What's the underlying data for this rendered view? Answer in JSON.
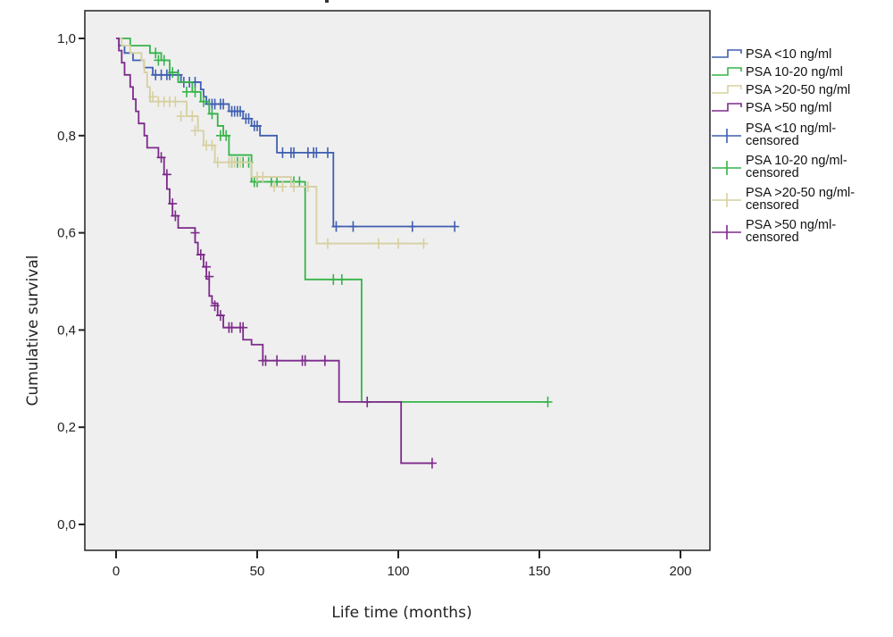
{
  "chart_data": {
    "type": "line",
    "subtype": "kaplan-meier",
    "title": "",
    "xlabel": "Life time (months)",
    "ylabel": "Cumulative survival",
    "xlim": [
      -12,
      210
    ],
    "ylim": [
      -0.05,
      1.05
    ],
    "xticks": [
      0,
      50,
      100,
      150,
      200
    ],
    "xtick_labels": [
      "0",
      "50",
      "100",
      "150",
      "200"
    ],
    "yticks": [
      0,
      0.2,
      0.4,
      0.6,
      0.8,
      1.0
    ],
    "ytick_labels": [
      "0,0",
      "0,2",
      "0,4",
      "0,6",
      "0,8",
      "1,0"
    ],
    "grid": false,
    "background": "#efefef",
    "legend_position": "right",
    "legend": [
      {
        "label": "PSA <10 ng/ml",
        "marker": "step",
        "color": "#3f5fb0"
      },
      {
        "label": "PSA 10-20 ng/ml",
        "marker": "step",
        "color": "#36b449"
      },
      {
        "label": "PSA >20-50 ng/ml",
        "marker": "step",
        "color": "#d6d0a0"
      },
      {
        "label": "PSA >50 ng/ml",
        "marker": "step",
        "color": "#7d2b8b"
      },
      {
        "label": "PSA <10 ng/ml-",
        "label2": "censored",
        "marker": "cross",
        "color": "#3f5fb0"
      },
      {
        "label": "PSA 10-20 ng/ml-",
        "label2": "censored",
        "marker": "cross",
        "color": "#36b449"
      },
      {
        "label": "PSA >20-50 ng/ml-",
        "label2": "censored",
        "marker": "cross",
        "color": "#d6d0a0"
      },
      {
        "label": "PSA >50 ng/ml-",
        "label2": "censored",
        "marker": "cross",
        "color": "#7d2b8b"
      }
    ],
    "series": [
      {
        "name": "PSA <10 ng/ml",
        "color": "#3f5fb0",
        "steps": [
          [
            0,
            1.0
          ],
          [
            1,
            0.985
          ],
          [
            3,
            0.97
          ],
          [
            6,
            0.955
          ],
          [
            10,
            0.94
          ],
          [
            13,
            0.925
          ],
          [
            23,
            0.91
          ],
          [
            30,
            0.895
          ],
          [
            31,
            0.88
          ],
          [
            32,
            0.865
          ],
          [
            40,
            0.85
          ],
          [
            45,
            0.835
          ],
          [
            48,
            0.82
          ],
          [
            51,
            0.8
          ],
          [
            57,
            0.765
          ],
          [
            77,
            0.613
          ],
          [
            120,
            0.613
          ]
        ],
        "censored": [
          [
            14,
            0.925
          ],
          [
            16,
            0.925
          ],
          [
            18,
            0.925
          ],
          [
            19,
            0.925
          ],
          [
            22,
            0.925
          ],
          [
            24,
            0.91
          ],
          [
            26,
            0.91
          ],
          [
            28,
            0.91
          ],
          [
            33,
            0.865
          ],
          [
            34,
            0.865
          ],
          [
            35,
            0.865
          ],
          [
            37,
            0.865
          ],
          [
            38,
            0.865
          ],
          [
            41,
            0.85
          ],
          [
            42,
            0.85
          ],
          [
            43,
            0.85
          ],
          [
            44,
            0.85
          ],
          [
            46,
            0.835
          ],
          [
            47,
            0.835
          ],
          [
            49,
            0.82
          ],
          [
            50,
            0.82
          ],
          [
            59,
            0.765
          ],
          [
            62,
            0.765
          ],
          [
            63,
            0.765
          ],
          [
            68,
            0.765
          ],
          [
            70,
            0.765
          ],
          [
            71,
            0.765
          ],
          [
            75,
            0.765
          ],
          [
            78,
            0.613
          ],
          [
            84,
            0.613
          ],
          [
            105,
            0.613
          ],
          [
            120,
            0.613
          ]
        ]
      },
      {
        "name": "PSA 10-20 ng/ml",
        "color": "#36b449",
        "steps": [
          [
            0,
            1.0
          ],
          [
            5,
            0.985
          ],
          [
            12,
            0.97
          ],
          [
            16,
            0.955
          ],
          [
            19,
            0.93
          ],
          [
            22,
            0.91
          ],
          [
            27,
            0.89
          ],
          [
            30,
            0.87
          ],
          [
            33,
            0.845
          ],
          [
            36,
            0.82
          ],
          [
            38,
            0.8
          ],
          [
            40,
            0.76
          ],
          [
            48,
            0.705
          ],
          [
            64,
            0.705
          ],
          [
            67,
            0.504
          ],
          [
            87,
            0.504
          ],
          [
            87,
            0.252
          ],
          [
            153,
            0.252
          ]
        ],
        "censored": [
          [
            14,
            0.97
          ],
          [
            15,
            0.955
          ],
          [
            17,
            0.955
          ],
          [
            20,
            0.93
          ],
          [
            25,
            0.89
          ],
          [
            28,
            0.89
          ],
          [
            31,
            0.87
          ],
          [
            34,
            0.845
          ],
          [
            37,
            0.8
          ],
          [
            39,
            0.8
          ],
          [
            41,
            0.745
          ],
          [
            43,
            0.745
          ],
          [
            45,
            0.745
          ],
          [
            47,
            0.745
          ],
          [
            49,
            0.705
          ],
          [
            50,
            0.705
          ],
          [
            55,
            0.705
          ],
          [
            57,
            0.705
          ],
          [
            63,
            0.705
          ],
          [
            65,
            0.705
          ],
          [
            77,
            0.504
          ],
          [
            80,
            0.504
          ],
          [
            153,
            0.252
          ]
        ]
      },
      {
        "name": "PSA >20-50 ng/ml",
        "color": "#d6d0a0",
        "steps": [
          [
            0,
            1.0
          ],
          [
            2,
            0.985
          ],
          [
            5,
            0.97
          ],
          [
            9,
            0.955
          ],
          [
            10,
            0.93
          ],
          [
            11,
            0.9
          ],
          [
            12,
            0.87
          ],
          [
            25,
            0.84
          ],
          [
            29,
            0.81
          ],
          [
            31,
            0.78
          ],
          [
            35,
            0.745
          ],
          [
            46,
            0.745
          ],
          [
            48,
            0.715
          ],
          [
            62,
            0.695
          ],
          [
            71,
            0.578
          ],
          [
            109,
            0.578
          ]
        ],
        "censored": [
          [
            13,
            0.88
          ],
          [
            15,
            0.87
          ],
          [
            17,
            0.87
          ],
          [
            19,
            0.87
          ],
          [
            21,
            0.87
          ],
          [
            23,
            0.84
          ],
          [
            27,
            0.84
          ],
          [
            28,
            0.81
          ],
          [
            32,
            0.78
          ],
          [
            34,
            0.78
          ],
          [
            36,
            0.745
          ],
          [
            40,
            0.745
          ],
          [
            41,
            0.745
          ],
          [
            42,
            0.745
          ],
          [
            44,
            0.745
          ],
          [
            50,
            0.715
          ],
          [
            52,
            0.715
          ],
          [
            56,
            0.695
          ],
          [
            59,
            0.695
          ],
          [
            63,
            0.695
          ],
          [
            68,
            0.695
          ],
          [
            75,
            0.578
          ],
          [
            93,
            0.578
          ],
          [
            100,
            0.578
          ],
          [
            109,
            0.578
          ]
        ]
      },
      {
        "name": "PSA >50 ng/ml",
        "color": "#7d2b8b",
        "steps": [
          [
            0,
            1.0
          ],
          [
            1,
            0.975
          ],
          [
            2,
            0.95
          ],
          [
            3,
            0.925
          ],
          [
            5,
            0.9
          ],
          [
            6,
            0.875
          ],
          [
            7,
            0.85
          ],
          [
            8,
            0.825
          ],
          [
            10,
            0.8
          ],
          [
            11,
            0.775
          ],
          [
            15,
            0.755
          ],
          [
            17,
            0.72
          ],
          [
            18,
            0.69
          ],
          [
            19,
            0.66
          ],
          [
            20,
            0.635
          ],
          [
            22,
            0.61
          ],
          [
            28,
            0.58
          ],
          [
            29,
            0.555
          ],
          [
            31,
            0.53
          ],
          [
            32,
            0.505
          ],
          [
            33,
            0.47
          ],
          [
            34,
            0.455
          ],
          [
            36,
            0.43
          ],
          [
            38,
            0.405
          ],
          [
            45,
            0.38
          ],
          [
            48,
            0.37
          ],
          [
            52,
            0.337
          ],
          [
            79,
            0.337
          ],
          [
            79,
            0.252
          ],
          [
            101,
            0.252
          ],
          [
            101,
            0.126
          ],
          [
            112,
            0.126
          ]
        ],
        "censored": [
          [
            16,
            0.755
          ],
          [
            18,
            0.72
          ],
          [
            20,
            0.66
          ],
          [
            21,
            0.635
          ],
          [
            28,
            0.6
          ],
          [
            30,
            0.555
          ],
          [
            32,
            0.53
          ],
          [
            33,
            0.51
          ],
          [
            35,
            0.45
          ],
          [
            37,
            0.43
          ],
          [
            40,
            0.405
          ],
          [
            41,
            0.405
          ],
          [
            44,
            0.405
          ],
          [
            45,
            0.405
          ],
          [
            52,
            0.337
          ],
          [
            53,
            0.337
          ],
          [
            57,
            0.337
          ],
          [
            66,
            0.337
          ],
          [
            67,
            0.337
          ],
          [
            74,
            0.337
          ],
          [
            89,
            0.252
          ],
          [
            112,
            0.126
          ]
        ]
      }
    ]
  }
}
